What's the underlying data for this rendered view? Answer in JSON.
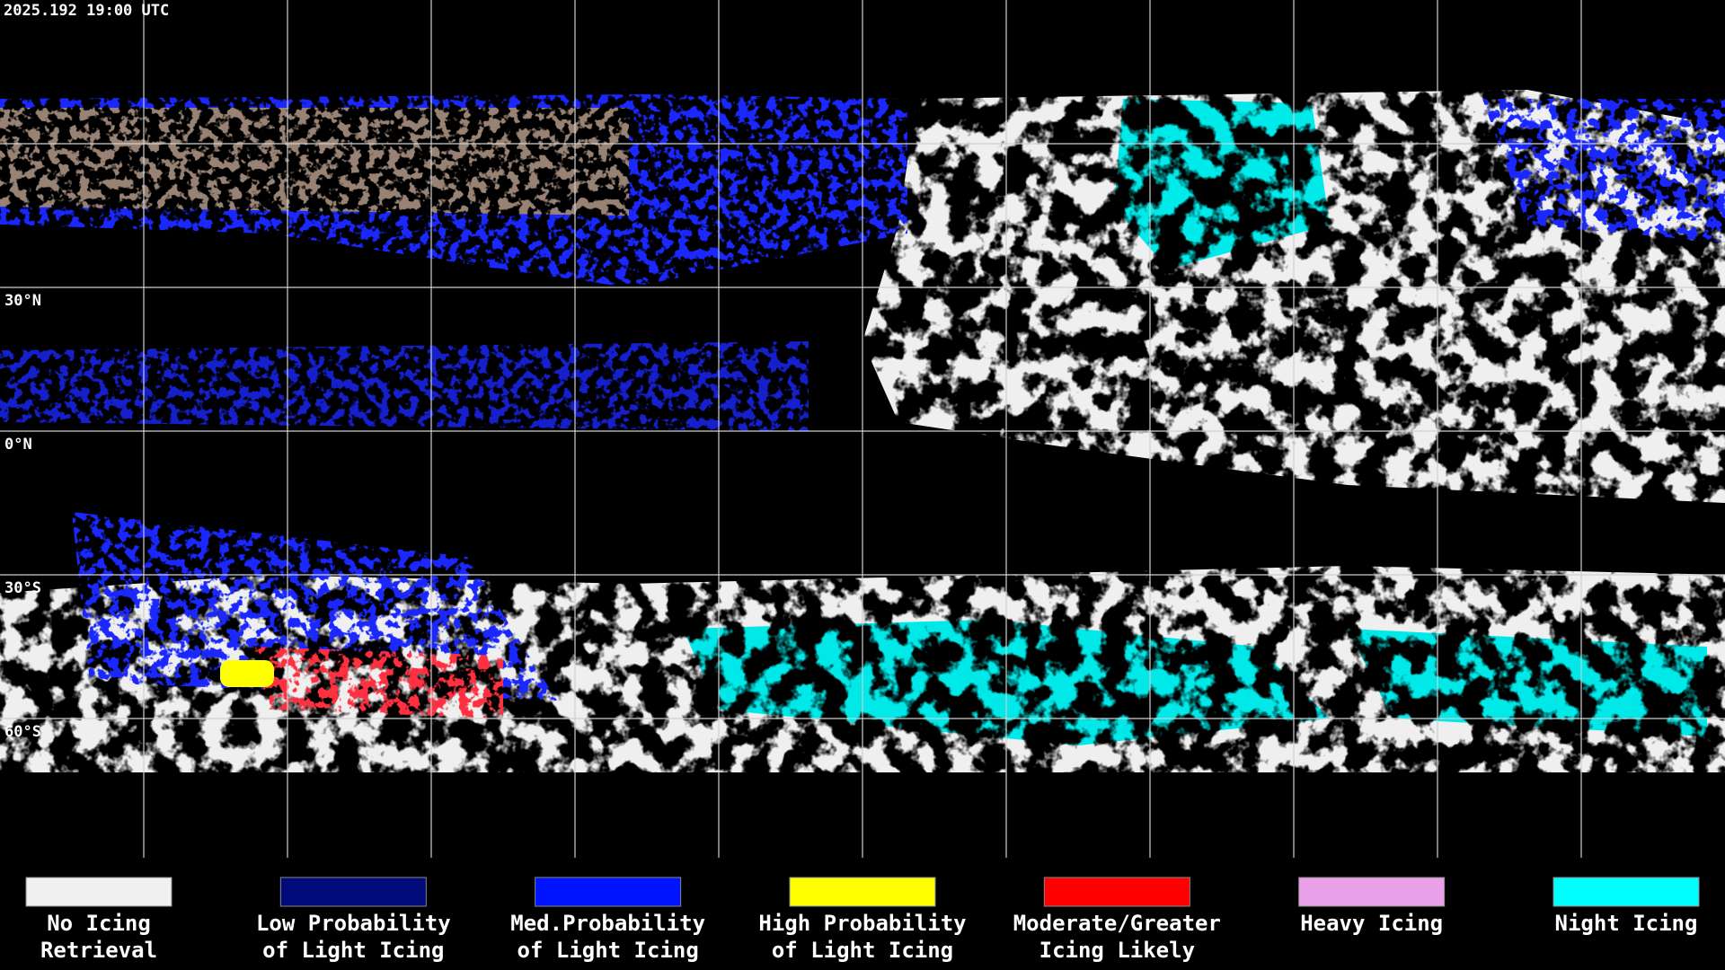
{
  "timestamp": "2025.192 19:00 UTC",
  "latitude_labels": [
    "30°N",
    "0°N",
    "30°S",
    "60°S"
  ],
  "legend": [
    {
      "lines": [
        "No Icing",
        "Retrieval"
      ],
      "color": "#f0f0f0"
    },
    {
      "lines": [
        "Low Probability",
        "of Light Icing"
      ],
      "color": "#000a78"
    },
    {
      "lines": [
        "Med.Probability",
        "of Light Icing"
      ],
      "color": "#0014ff"
    },
    {
      "lines": [
        "High Probability",
        "of Light Icing"
      ],
      "color": "#ffff00"
    },
    {
      "lines": [
        "Moderate/Greater",
        "Icing Likely"
      ],
      "color": "#ff0000"
    },
    {
      "lines": [
        "Heavy Icing"
      ],
      "color": "#e8a0e8"
    },
    {
      "lines": [
        "Night Icing"
      ],
      "color": "#00ffff"
    }
  ]
}
